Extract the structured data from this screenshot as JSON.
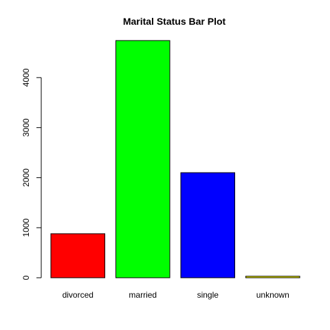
{
  "chart_data": {
    "type": "bar",
    "title": "Marital Status Bar Plot",
    "xlabel": "",
    "ylabel": "",
    "categories": [
      "divorced",
      "married",
      "single",
      "unknown"
    ],
    "values": [
      880,
      4740,
      2100,
      30
    ],
    "colors": [
      "#ff0000",
      "#00ff00",
      "#0000ff",
      "#ffff00"
    ],
    "ylim": [
      0,
      4740
    ],
    "yticks": [
      0,
      1000,
      2000,
      3000,
      4000
    ],
    "ytick_labels": [
      "0",
      "1000",
      "2000",
      "3000",
      "4000"
    ],
    "grid": false,
    "legend": "none"
  }
}
